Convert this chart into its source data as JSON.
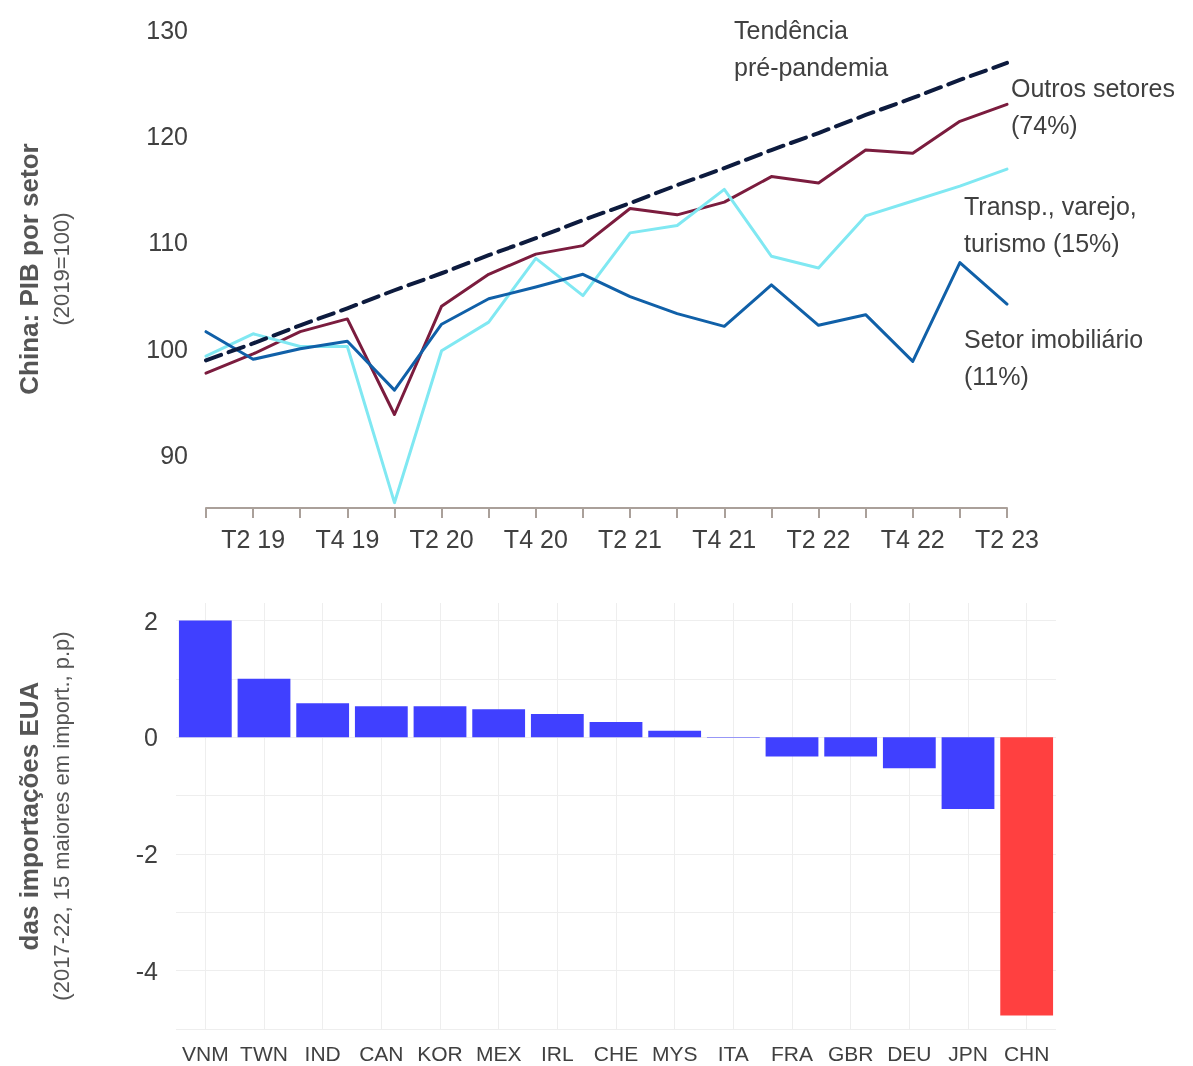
{
  "chart_data": [
    {
      "type": "line",
      "ylabel": "China: PIB por setor\n(2019=100)",
      "categories": [
        null,
        "T2 19",
        null,
        "T4 19",
        null,
        "T2 20",
        null,
        "T4 20",
        null,
        "T2 21",
        null,
        "T4 21",
        null,
        "T2 22",
        null,
        "T4 22",
        null,
        "T2 23"
      ],
      "series": [
        {
          "name": "Tendência pré-pandemia",
          "color": "#0d1b3e",
          "line_style": "dashed",
          "values": [
            98.9,
            100.5,
            102.2,
            103.8,
            105.5,
            107.1,
            108.8,
            110.4,
            112.1,
            113.7,
            115.4,
            117.0,
            118.7,
            120.3,
            122.0,
            123.6,
            125.3,
            126.9
          ]
        },
        {
          "name": "Outros setores (74%)",
          "color": "#7b1c3e",
          "values": [
            97.7,
            99.5,
            101.6,
            102.8,
            93.8,
            104.0,
            107.0,
            108.9,
            109.7,
            113.2,
            112.6,
            113.8,
            116.2,
            115.6,
            118.7,
            118.4,
            121.4,
            123.0
          ]
        },
        {
          "name": "Transp., varejo, turismo (15%)",
          "color": "#80e8f2",
          "values": [
            99.3,
            101.4,
            100.2,
            100.2,
            85.5,
            99.8,
            102.5,
            108.5,
            105.0,
            110.9,
            111.6,
            115.0,
            108.7,
            107.6,
            112.5,
            113.9,
            115.3,
            116.9
          ]
        },
        {
          "name": "Setor imobiliário (11%)",
          "color": "#1060a8",
          "values": [
            101.6,
            99.0,
            100.0,
            100.7,
            96.1,
            102.3,
            104.7,
            105.8,
            107.0,
            104.9,
            103.3,
            102.1,
            106.0,
            102.2,
            103.2,
            98.8,
            108.1,
            104.2
          ]
        }
      ],
      "ylim": [
        85,
        130
      ],
      "yticks": [
        90,
        100,
        110,
        120,
        130
      ],
      "grid": false,
      "legend": false,
      "marker": "none",
      "line_style": "solid"
    },
    {
      "type": "bar",
      "ylabel": "das importações EUA\n(2017-22, 15 maiores em import., p.p)",
      "categories": [
        "VNM",
        "TWN",
        "IND",
        "CAN",
        "KOR",
        "MEX",
        "IRL",
        "CHE",
        "MYS",
        "ITA",
        "FRA",
        "GBR",
        "DEU",
        "JPN",
        "CHN"
      ],
      "values": [
        2.0,
        1.0,
        0.58,
        0.53,
        0.53,
        0.48,
        0.4,
        0.26,
        0.11,
        -0.01,
        -0.33,
        -0.33,
        -0.53,
        -1.23,
        -4.77
      ],
      "colors": [
        "#4040ff",
        "#4040ff",
        "#4040ff",
        "#4040ff",
        "#4040ff",
        "#4040ff",
        "#4040ff",
        "#4040ff",
        "#4040ff",
        "#4040ff",
        "#4040ff",
        "#4040ff",
        "#4040ff",
        "#4040ff",
        "#ff4040"
      ],
      "ylim": [
        -5,
        2.3
      ],
      "yticks": [
        {
          "value": -5,
          "label": null
        },
        -4,
        {
          "value": -3,
          "label": null
        },
        -2,
        {
          "value": -1,
          "label": null
        },
        0,
        {
          "value": 1,
          "label": null
        },
        2
      ],
      "grid": true,
      "legend": false
    }
  ]
}
